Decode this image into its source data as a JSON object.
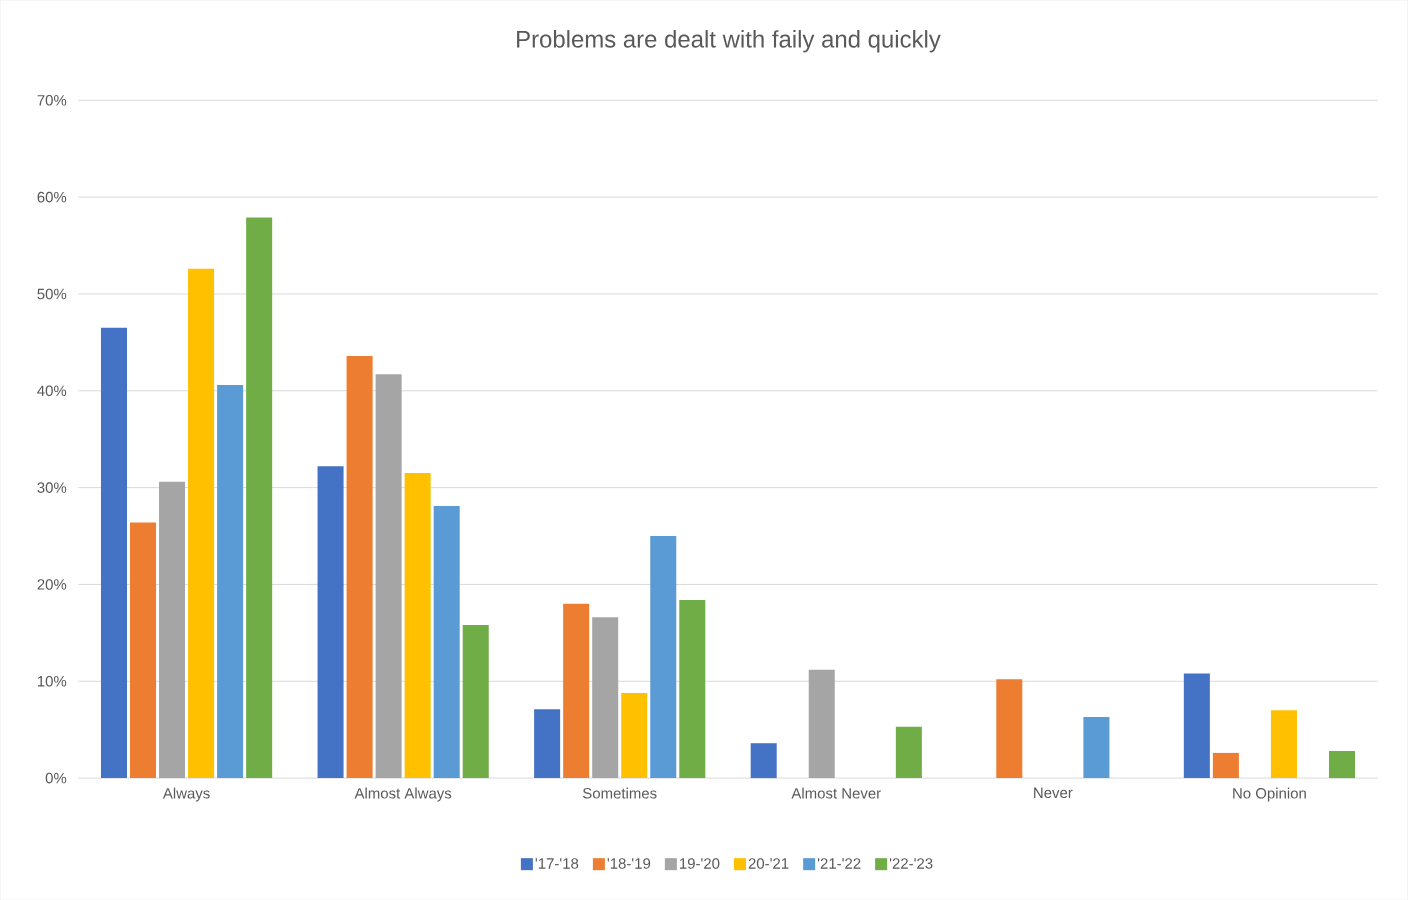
{
  "chart_data": {
    "type": "bar",
    "title": "Problems are dealt with faily and quickly",
    "categories": [
      "Always",
      "Almost Always",
      "Sometimes",
      "Almost Never",
      "Never",
      "No Opinion"
    ],
    "series": [
      {
        "name": "'17-'18",
        "color": "#4472c4",
        "values": [
          46.5,
          32.2,
          7.1,
          3.6,
          0,
          10.8
        ]
      },
      {
        "name": "'18-'19",
        "color": "#ed7d31",
        "values": [
          26.4,
          43.6,
          18.0,
          0,
          10.2,
          2.6
        ]
      },
      {
        "name": "19-'20",
        "color": "#a5a5a5",
        "values": [
          30.6,
          41.7,
          16.6,
          11.2,
          0,
          0
        ]
      },
      {
        "name": "20-'21",
        "color": "#ffc000",
        "values": [
          52.6,
          31.5,
          8.8,
          0,
          0,
          7.0
        ]
      },
      {
        "name": "'21-'22",
        "color": "#5b9bd5",
        "values": [
          40.6,
          28.1,
          25.0,
          0,
          6.3,
          0
        ]
      },
      {
        "name": "'22-'23",
        "color": "#70ad47",
        "values": [
          57.9,
          15.8,
          18.4,
          5.3,
          0,
          2.8
        ]
      }
    ],
    "ylim": [
      0,
      70
    ],
    "yticks": [
      {
        "value": 0,
        "label": "0%"
      },
      {
        "value": 10,
        "label": "10%"
      },
      {
        "value": 20,
        "label": "20%"
      },
      {
        "value": 30,
        "label": "30%"
      },
      {
        "value": 40,
        "label": "40%"
      },
      {
        "value": 50,
        "label": "50%"
      },
      {
        "value": 60,
        "label": "60%"
      },
      {
        "value": 70,
        "label": "70%"
      }
    ],
    "grid": "y",
    "legend": "bottom"
  }
}
